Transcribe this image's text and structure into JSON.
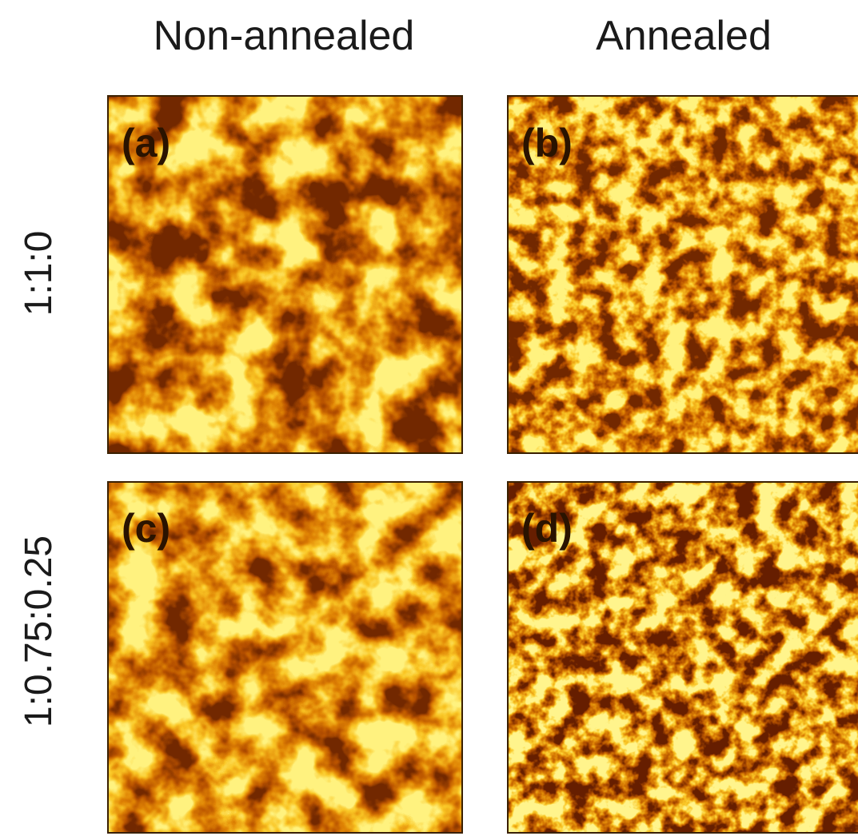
{
  "column_headers": [
    "Non-annealed",
    "Annealed"
  ],
  "row_labels": [
    "1:1:0",
    "1:0.75:0.25"
  ],
  "panels": [
    {
      "label": "(a)"
    },
    {
      "label": "(b)"
    },
    {
      "label": "(c)"
    },
    {
      "label": "(d)"
    }
  ]
}
